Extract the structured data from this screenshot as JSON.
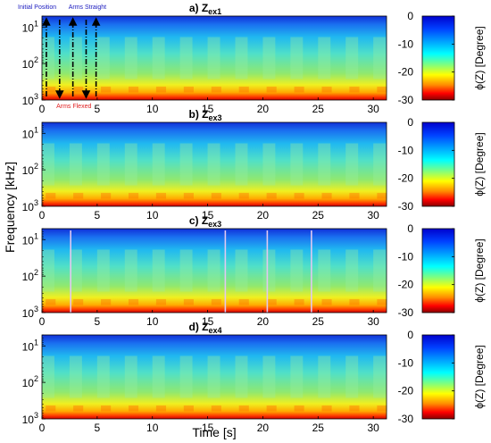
{
  "chart_data": {
    "type": "heatmap",
    "shared": {
      "xlabel": "Time [s]",
      "ylabel": "Frequency [kHz]",
      "x_ticks": [
        "0",
        "5",
        "10",
        "15",
        "20",
        "25",
        "30"
      ],
      "x_tick_values": [
        0,
        5,
        10,
        15,
        20,
        25,
        30
      ],
      "xlim": [
        0,
        31.2
      ],
      "y_scale": "log",
      "y_direction": "reversed",
      "y_tick_values": [
        10,
        100,
        1000
      ],
      "ylim": [
        5,
        1000
      ],
      "colorbar_label": "ϕ(Z) [Degree]",
      "colorbar_ticks": [
        "0",
        "-10",
        "-20",
        "-30"
      ],
      "colorbar_tick_values": [
        0,
        -10,
        -20,
        -30
      ],
      "color_range": [
        -30,
        0
      ],
      "colormap": [
        "#8b0000",
        "#ff0000",
        "#ff8c00",
        "#ffff00",
        "#7fff7f",
        "#00ffff",
        "#007fff",
        "#0000cd"
      ]
    },
    "panels": [
      {
        "title_prefix": "a) Z",
        "title_subscript": "ex1",
        "annotations": {
          "top_left": "Initial Position",
          "top_right": "Arms Straight",
          "bottom": "Arms Flexed",
          "arrow_times": [
            0.4,
            1.6,
            2.8,
            4.0,
            4.9
          ]
        },
        "period_s": 2.5,
        "artifact_times": []
      },
      {
        "title_prefix": "b) Z",
        "title_subscript": "ex3",
        "period_s": 2.5,
        "artifact_times": []
      },
      {
        "title_prefix": "c) Z",
        "title_subscript": "ex3",
        "period_s": 2.5,
        "artifact_times": [
          2.6,
          16.6,
          20.4,
          24.4
        ]
      },
      {
        "title_prefix": "d) Z",
        "title_subscript": "ex4",
        "period_s": 2.5,
        "artifact_times": []
      }
    ]
  }
}
